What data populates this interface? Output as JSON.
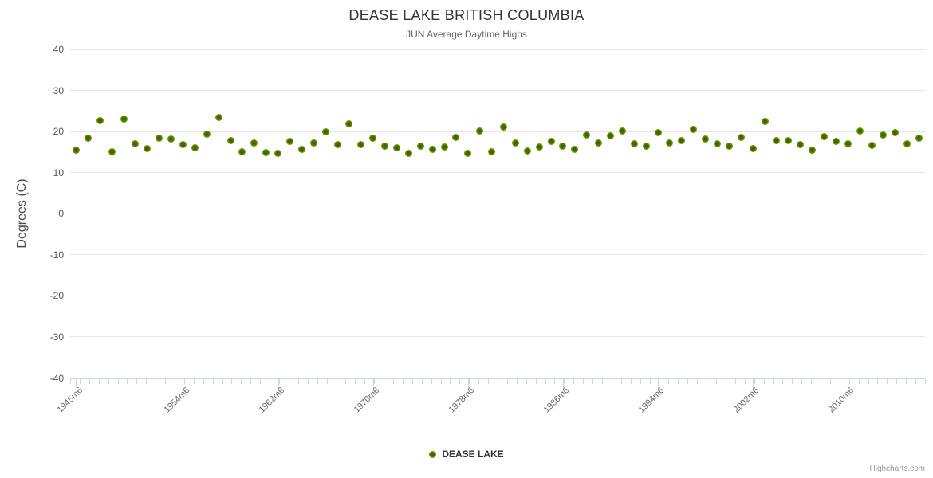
{
  "header": {
    "title": "DEASE LAKE BRITISH COLUMBIA",
    "subtitle": "JUN Average Daytime Highs"
  },
  "legend": {
    "label": "DEASE LAKE"
  },
  "credits": {
    "label": "Highcharts.com"
  },
  "colors": {
    "marker_edge": "#7db500",
    "marker_core": "#3f6300",
    "grid": "#e6e6e6",
    "axis": "#ccd6eb",
    "title_text": "#333333",
    "subtitle_text": "#666666",
    "label_text": "#666666",
    "credits_text": "#999999"
  },
  "chart_data": {
    "type": "scatter",
    "title": "DEASE LAKE BRITISH COLUMBIA",
    "subtitle": "JUN Average Daytime Highs",
    "xlabel": "",
    "ylabel": "Degrees (C)",
    "ylim": [
      -40,
      40
    ],
    "ytick_labels": [
      "40",
      "30",
      "20",
      "10",
      "0",
      "-10",
      "-20",
      "-30",
      "-40"
    ],
    "ytick_values": [
      40,
      30,
      20,
      10,
      0,
      -10,
      -20,
      -30,
      -40
    ],
    "grid": "horizontal",
    "legend_position": "bottom-center",
    "x_tick_labels": [
      "1945m6",
      "1954m6",
      "1962m6",
      "1970m6",
      "1978m6",
      "1986m6",
      "1994m6",
      "2002m6",
      "2010m6"
    ],
    "x_start_year": 1945,
    "categories": [
      "1945m6",
      "1946m6",
      "1947m6",
      "1948m6",
      "1949m6",
      "1950m6",
      "1951m6",
      "1952m6",
      "1953m6",
      "1954m6",
      "1955m6",
      "1956m6",
      "1957m6",
      "1958m6",
      "1959m6",
      "1960m6",
      "1961m6",
      "1962m6",
      "1963m6",
      "1964m6",
      "1965m6",
      "1966m6",
      "1967m6",
      "1968m6",
      "1969m6",
      "1970m6",
      "1971m6",
      "1972m6",
      "1973m6",
      "1974m6",
      "1975m6",
      "1976m6",
      "1977m6",
      "1978m6",
      "1979m6",
      "1980m6",
      "1981m6",
      "1982m6",
      "1983m6",
      "1984m6",
      "1985m6",
      "1986m6",
      "1987m6",
      "1988m6",
      "1989m6",
      "1990m6",
      "1991m6",
      "1992m6",
      "1993m6",
      "1994m6",
      "1995m6",
      "1996m6",
      "1997m6",
      "1998m6",
      "1999m6",
      "2000m6",
      "2001m6",
      "2002m6",
      "2003m6",
      "2004m6",
      "2005m6",
      "2006m6",
      "2007m6",
      "2008m6",
      "2009m6",
      "2010m6",
      "2011m6",
      "2012m6",
      "2013m6",
      "2014m6",
      "2015m6",
      "2016m6"
    ],
    "series": [
      {
        "name": "DEASE LAKE",
        "color": "#7db500",
        "values": [
          15.5,
          18.5,
          22.7,
          15.2,
          23.1,
          17.1,
          15.9,
          18.5,
          18.2,
          16.8,
          16.0,
          19.4,
          23.4,
          17.9,
          15.1,
          17.3,
          15.0,
          14.8,
          17.6,
          15.7,
          17.3,
          20.0,
          16.8,
          22.0,
          16.8,
          18.4,
          16.5,
          16.0,
          14.8,
          16.4,
          15.7,
          16.2,
          18.6,
          14.7,
          20.1,
          15.2,
          21.2,
          17.3,
          15.3,
          16.3,
          17.6,
          16.4,
          15.7,
          19.1,
          17.3,
          19.0,
          20.1,
          17.0,
          16.4,
          19.7,
          17.3,
          17.8,
          20.6,
          18.2,
          17.1,
          16.4,
          18.6,
          15.9,
          22.4,
          17.9,
          17.9,
          16.8,
          15.6,
          18.8,
          17.6,
          17.1,
          20.2,
          16.6,
          19.1,
          19.7,
          17.1,
          18.4
        ]
      }
    ]
  }
}
